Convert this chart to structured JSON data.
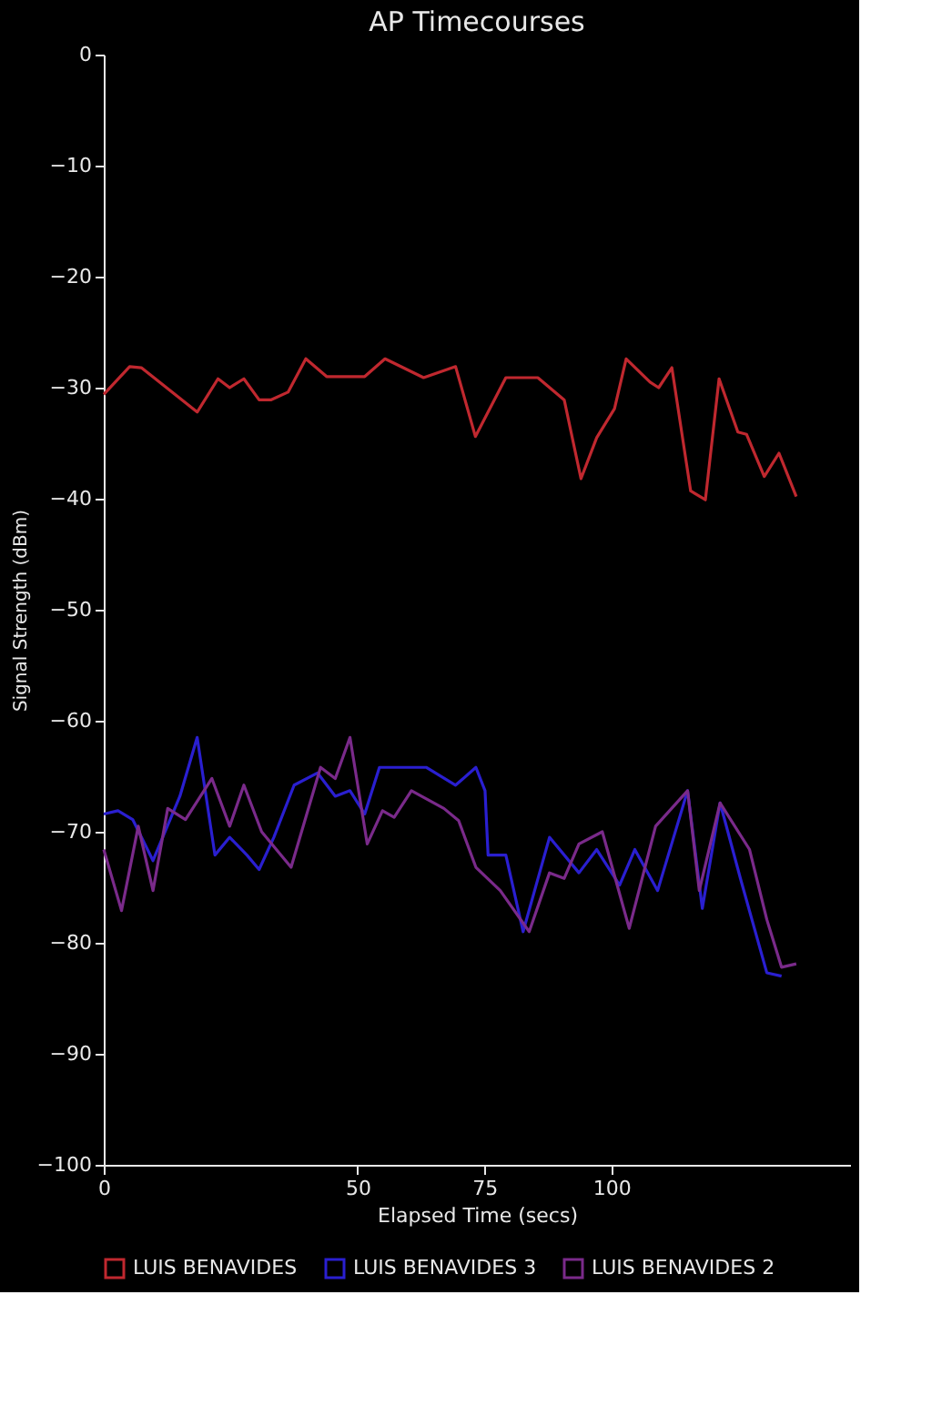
{
  "chart_data": {
    "type": "line",
    "title": "AP Timecourses",
    "xlabel": "Elapsed Time (secs)",
    "ylabel": "Signal Strength (dBm)",
    "xlim": [
      0,
      147
    ],
    "xticks": [
      0,
      50,
      75,
      100
    ],
    "ylim": [
      -100,
      0
    ],
    "yticks": [
      0,
      -10,
      -20,
      -30,
      -40,
      -50,
      -60,
      -70,
      -80,
      -90,
      -100
    ],
    "grid": false,
    "legend": "bottom",
    "marker": "none",
    "line_style": "solid",
    "series": [
      {
        "name": "LUIS BENAVIDES",
        "color": "#c0282f",
        "x": [
          0,
          5.1,
          7.4,
          18.4,
          22.5,
          24.8,
          27.6,
          30.6,
          32.9,
          36.3,
          39.8,
          43.9,
          51.4,
          55.4,
          63.0,
          69.3,
          73.2,
          79.2,
          85.5,
          90.7,
          94.0,
          97.1,
          100.6,
          102.9,
          107.6,
          109.3,
          111.9,
          115.6,
          118.5,
          121.2,
          124.9,
          126.6,
          130.1,
          133.0,
          136.4
        ],
        "values": [
          -30.6,
          -28.1,
          -28.2,
          -32.2,
          -29.2,
          -30.0,
          -29.2,
          -31.1,
          -31.1,
          -30.4,
          -27.4,
          -29.0,
          -29.0,
          -27.4,
          -29.1,
          -28.1,
          -34.4,
          -29.1,
          -29.1,
          -31.1,
          -38.2,
          -34.5,
          -31.9,
          -27.4,
          -29.5,
          -30.0,
          -28.2,
          -39.3,
          -40.1,
          -29.2,
          -34.0,
          -34.2,
          -38.0,
          -35.9,
          -39.8
        ]
      },
      {
        "name": "LUIS BENAVIDES 3",
        "color": "#2a1fd0",
        "x": [
          0,
          2.8,
          5.7,
          9.7,
          15.0,
          18.4,
          21.9,
          24.8,
          28.2,
          30.6,
          33.5,
          37.5,
          42.1,
          45.6,
          48.5,
          51.4,
          54.3,
          58.9,
          63.5,
          69.3,
          73.3,
          75.1,
          75.7,
          79.2,
          82.6,
          87.8,
          93.6,
          97.1,
          101.6,
          104.6,
          109.1,
          115.0,
          117.9,
          121.4,
          125.4,
          130.6,
          133.5
        ],
        "values": [
          -68.4,
          -68.1,
          -68.9,
          -72.6,
          -66.8,
          -61.5,
          -72.1,
          -70.5,
          -72.1,
          -73.4,
          -70.5,
          -65.8,
          -64.7,
          -66.8,
          -66.3,
          -68.4,
          -64.2,
          -64.2,
          -64.2,
          -65.8,
          -64.2,
          -66.3,
          -72.1,
          -72.1,
          -79.0,
          -70.5,
          -73.7,
          -71.6,
          -74.8,
          -71.6,
          -75.3,
          -66.3,
          -76.9,
          -67.4,
          -74.2,
          -82.7,
          -83.0
        ]
      },
      {
        "name": "LUIS BENAVIDES 2",
        "color": "#7a2a8a",
        "x": [
          0,
          3.5,
          6.8,
          9.7,
          12.6,
          16.1,
          21.3,
          24.8,
          27.6,
          31.1,
          36.9,
          42.7,
          45.6,
          48.5,
          51.9,
          54.9,
          57.2,
          60.6,
          67.0,
          69.9,
          73.3,
          78.1,
          83.8,
          87.8,
          90.7,
          93.6,
          98.2,
          103.5,
          108.7,
          115.0,
          117.3,
          121.4,
          127.2,
          130.6,
          133.5,
          136.4
        ],
        "values": [
          -71.6,
          -77.1,
          -69.5,
          -75.3,
          -67.9,
          -68.9,
          -65.2,
          -69.5,
          -65.8,
          -70.0,
          -73.2,
          -64.2,
          -65.2,
          -61.5,
          -71.1,
          -68.1,
          -68.7,
          -66.3,
          -67.9,
          -69.0,
          -73.2,
          -75.3,
          -79.0,
          -73.7,
          -74.2,
          -71.1,
          -70.0,
          -78.7,
          -69.5,
          -66.3,
          -75.3,
          -67.4,
          -71.6,
          -77.9,
          -82.2,
          -81.9
        ]
      }
    ]
  }
}
